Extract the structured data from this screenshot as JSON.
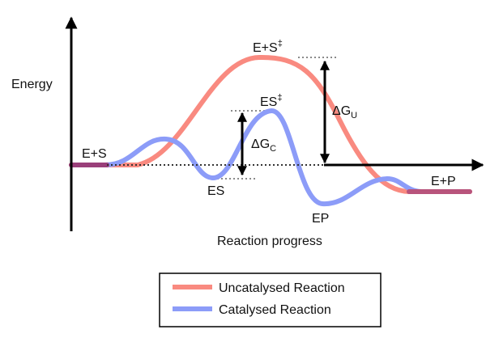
{
  "diagram": {
    "axis_y_label": "Energy",
    "axis_x_label": "Reaction progress",
    "labels": {
      "reactants": "E+S",
      "uncat_ts": "E+S",
      "uncat_ts_sup": "‡",
      "cat_ts": "ES",
      "cat_ts_sup": "‡",
      "intermediate": "ES",
      "product_complex": "EP",
      "products": "E+P",
      "dg_uncat_main": "ΔG",
      "dg_uncat_sub": "U",
      "dg_cat_main": "ΔG",
      "dg_cat_sub": "C"
    },
    "legend": {
      "items": [
        {
          "label": "Uncatalysed Reaction",
          "color": "#f98a80"
        },
        {
          "label": "Catalysed Reaction",
          "color": "#8c9cf8"
        }
      ]
    },
    "colors": {
      "uncatalysed": "#f98a80",
      "catalysed": "#8c9cf8",
      "product_overlap": "#b8547c",
      "reactant_overlap": "#9a3f7a",
      "axis": "#000000",
      "guide": "#8a8a8a"
    }
  }
}
